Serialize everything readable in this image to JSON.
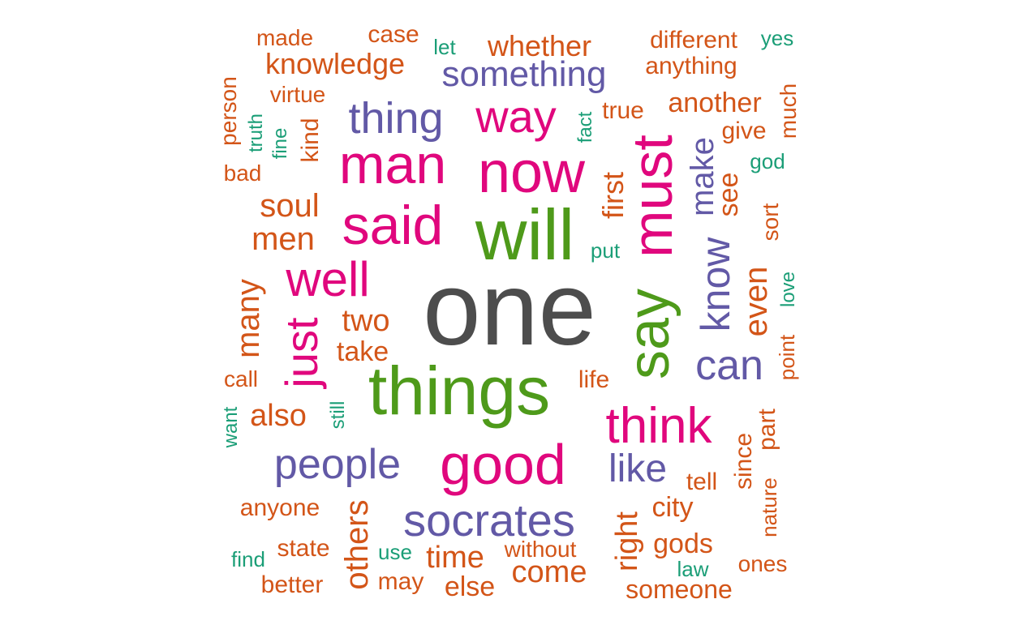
{
  "colors": {
    "gray": "#4D4D4D",
    "green": "#4E9A1A",
    "magenta": "#E0077D",
    "purple": "#6259A6",
    "orange": "#D35518",
    "teal": "#1B9E77"
  },
  "words": [
    {
      "text": "one",
      "color": "gray",
      "size": 36
    },
    {
      "text": "will",
      "color": "green",
      "size": 29
    },
    {
      "text": "things",
      "color": "green",
      "size": 27
    },
    {
      "text": "say",
      "color": "green",
      "size": 27
    },
    {
      "text": "must",
      "color": "magenta",
      "size": 26
    },
    {
      "text": "now",
      "color": "magenta",
      "size": 26
    },
    {
      "text": "said",
      "color": "magenta",
      "size": 24
    },
    {
      "text": "man",
      "color": "magenta",
      "size": 24
    },
    {
      "text": "good",
      "color": "magenta",
      "size": 24
    },
    {
      "text": "well",
      "color": "magenta",
      "size": 22
    },
    {
      "text": "just",
      "color": "magenta",
      "size": 22
    },
    {
      "text": "think",
      "color": "magenta",
      "size": 22
    },
    {
      "text": "way",
      "color": "magenta",
      "size": 20
    },
    {
      "text": "thing",
      "color": "purple",
      "size": 19
    },
    {
      "text": "know",
      "color": "purple",
      "size": 18
    },
    {
      "text": "can",
      "color": "purple",
      "size": 18
    },
    {
      "text": "socrates",
      "color": "purple",
      "size": 18
    },
    {
      "text": "people",
      "color": "purple",
      "size": 17
    },
    {
      "text": "like",
      "color": "purple",
      "size": 17
    },
    {
      "text": "something",
      "color": "purple",
      "size": 16
    },
    {
      "text": "make",
      "color": "purple",
      "size": 16
    },
    {
      "text": "first",
      "color": "orange",
      "size": 14
    },
    {
      "text": "even",
      "color": "orange",
      "size": 14
    },
    {
      "text": "many",
      "color": "orange",
      "size": 14
    },
    {
      "text": "soul",
      "color": "orange",
      "size": 14
    },
    {
      "text": "men",
      "color": "orange",
      "size": 14
    },
    {
      "text": "time",
      "color": "orange",
      "size": 14
    },
    {
      "text": "others",
      "color": "orange",
      "size": 14
    },
    {
      "text": "right",
      "color": "orange",
      "size": 14
    },
    {
      "text": "come",
      "color": "orange",
      "size": 14
    },
    {
      "text": "also",
      "color": "orange",
      "size": 14
    },
    {
      "text": "whether",
      "color": "orange",
      "size": 13
    },
    {
      "text": "knowledge",
      "color": "orange",
      "size": 13
    },
    {
      "text": "two",
      "color": "orange",
      "size": 13
    },
    {
      "text": "take",
      "color": "orange",
      "size": 13
    },
    {
      "text": "see",
      "color": "orange",
      "size": 13
    },
    {
      "text": "gods",
      "color": "orange",
      "size": 12
    },
    {
      "text": "city",
      "color": "orange",
      "size": 12
    },
    {
      "text": "another",
      "color": "orange",
      "size": 12
    },
    {
      "text": "give",
      "color": "orange",
      "size": 11
    },
    {
      "text": "different",
      "color": "orange",
      "size": 11
    },
    {
      "text": "anything",
      "color": "orange",
      "size": 11
    },
    {
      "text": "case",
      "color": "orange",
      "size": 11
    },
    {
      "text": "true",
      "color": "orange",
      "size": 11
    },
    {
      "text": "kind",
      "color": "orange",
      "size": 11
    },
    {
      "text": "sort",
      "color": "orange",
      "size": 11
    },
    {
      "text": "part",
      "color": "orange",
      "size": 11
    },
    {
      "text": "since",
      "color": "orange",
      "size": 11
    },
    {
      "text": "else",
      "color": "orange",
      "size": 11
    },
    {
      "text": "someone",
      "color": "orange",
      "size": 11
    },
    {
      "text": "tell",
      "color": "orange",
      "size": 11
    },
    {
      "text": "life",
      "color": "orange",
      "size": 11
    },
    {
      "text": "state",
      "color": "orange",
      "size": 11
    },
    {
      "text": "anyone",
      "color": "orange",
      "size": 11
    },
    {
      "text": "without",
      "color": "orange",
      "size": 11
    },
    {
      "text": "may",
      "color": "orange",
      "size": 11
    },
    {
      "text": "better",
      "color": "orange",
      "size": 11
    },
    {
      "text": "made",
      "color": "orange",
      "size": 10
    },
    {
      "text": "virtue",
      "color": "orange",
      "size": 10
    },
    {
      "text": "person",
      "color": "orange",
      "size": 10
    },
    {
      "text": "bad",
      "color": "orange",
      "size": 10
    },
    {
      "text": "much",
      "color": "orange",
      "size": 10
    },
    {
      "text": "call",
      "color": "orange",
      "size": 10
    },
    {
      "text": "point",
      "color": "orange",
      "size": 10
    },
    {
      "text": "nature",
      "color": "orange",
      "size": 10
    },
    {
      "text": "ones",
      "color": "orange",
      "size": 10
    },
    {
      "text": "yes",
      "color": "teal",
      "size": 9
    },
    {
      "text": "let",
      "color": "teal",
      "size": 9
    },
    {
      "text": "fact",
      "color": "teal",
      "size": 9
    },
    {
      "text": "truth",
      "color": "teal",
      "size": 9
    },
    {
      "text": "fine",
      "color": "teal",
      "size": 9
    },
    {
      "text": "god",
      "color": "teal",
      "size": 9
    },
    {
      "text": "put",
      "color": "teal",
      "size": 9
    },
    {
      "text": "love",
      "color": "teal",
      "size": 9
    },
    {
      "text": "still",
      "color": "teal",
      "size": 9
    },
    {
      "text": "want",
      "color": "teal",
      "size": 9
    },
    {
      "text": "find",
      "color": "teal",
      "size": 9
    },
    {
      "text": "use",
      "color": "teal",
      "size": 9
    },
    {
      "text": "law",
      "color": "teal",
      "size": 9
    }
  ]
}
